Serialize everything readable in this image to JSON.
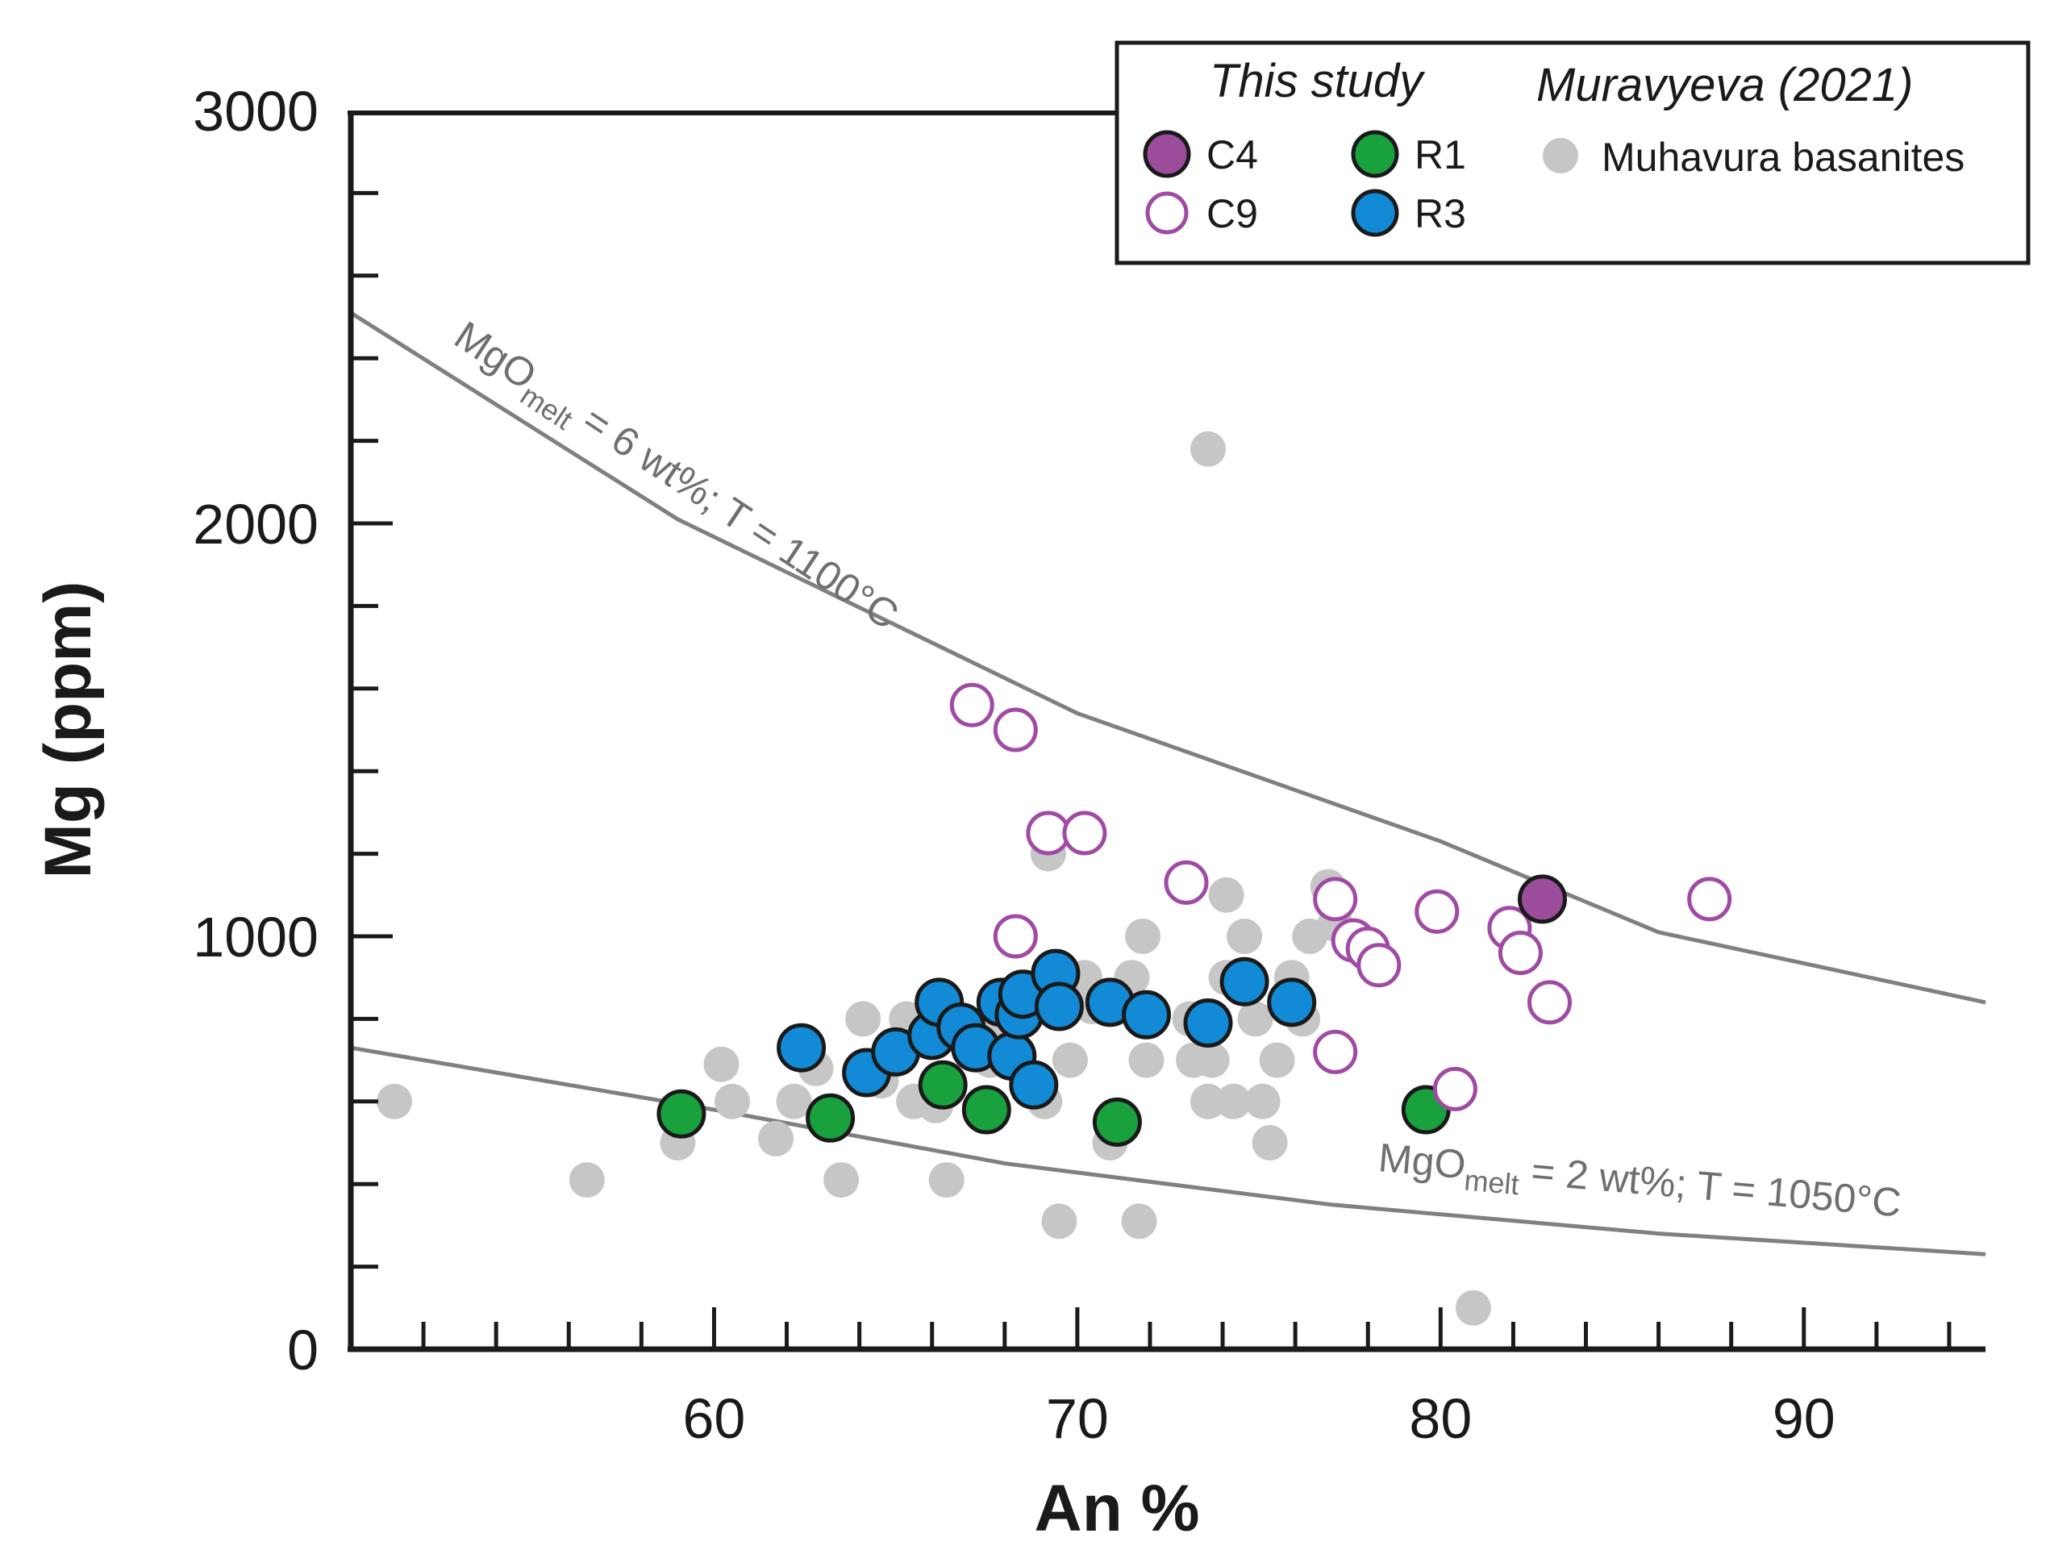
{
  "chart_data": {
    "type": "scatter",
    "xlabel": "An %",
    "ylabel": "Mg (ppm)",
    "xlim": [
      50,
      95
    ],
    "ylim": [
      0,
      3000
    ],
    "x_ticks": [
      60,
      70,
      80,
      90
    ],
    "y_ticks": [
      0,
      1000,
      2000,
      3000
    ],
    "grid": false,
    "legend_position": "top-right",
    "legend": {
      "group_this_study": "This study",
      "group_muravyeva": "Muravyeva (2021)",
      "entries": [
        "C4",
        "C9",
        "R1",
        "R3",
        "Muhavura basanites"
      ]
    },
    "colors": {
      "C4": "#9b4c9b",
      "C9": "#a04aa4",
      "R1": "#19a13e",
      "R3": "#128ad5",
      "Muhavura basanites": "#c6c6c6",
      "curves": "#808080"
    },
    "curves": [
      {
        "name": "MgO_melt = 6 wt%; T = 1100°C",
        "label_main": "MgO",
        "label_sub": "melt",
        "label_rest": " = 6 wt%; T = 1100°C",
        "x": [
          50,
          59,
          70,
          80,
          86,
          95
        ],
        "y": [
          2510,
          2010,
          1540,
          1230,
          1010,
          840
        ]
      },
      {
        "name": "MgO_melt = 2 wt%; T = 1050°C",
        "label_main": "MgO",
        "label_sub": "melt",
        "label_rest": " = 2 wt%; T = 1050°C",
        "x": [
          50,
          60,
          68,
          77,
          86,
          95
        ],
        "y": [
          730,
          580,
          450,
          350,
          280,
          230
        ]
      }
    ],
    "series": [
      {
        "name": "Muhavura basanites",
        "style": "filled",
        "points": [
          [
            51.2,
            600
          ],
          [
            56.5,
            410
          ],
          [
            59,
            500
          ],
          [
            60.2,
            690
          ],
          [
            60.5,
            600
          ],
          [
            61.7,
            510
          ],
          [
            62.2,
            600
          ],
          [
            62.8,
            680
          ],
          [
            63.5,
            410
          ],
          [
            64.1,
            800
          ],
          [
            64.6,
            650
          ],
          [
            65.3,
            800
          ],
          [
            65.5,
            600
          ],
          [
            66.1,
            590
          ],
          [
            66.4,
            410
          ],
          [
            67.6,
            700
          ],
          [
            67.9,
            800
          ],
          [
            68.5,
            850
          ],
          [
            69.1,
            600
          ],
          [
            69.5,
            310
          ],
          [
            69.8,
            700
          ],
          [
            70.2,
            900
          ],
          [
            70.4,
            830
          ],
          [
            70.9,
            500
          ],
          [
            71.5,
            900
          ],
          [
            71.8,
            1000
          ],
          [
            71.9,
            700
          ],
          [
            71.7,
            310
          ],
          [
            73.1,
            800
          ],
          [
            73.2,
            700
          ],
          [
            73.6,
            600
          ],
          [
            73.7,
            700
          ],
          [
            74.1,
            900
          ],
          [
            74.3,
            600
          ],
          [
            74.1,
            1100
          ],
          [
            74.6,
            1000
          ],
          [
            74.9,
            800
          ],
          [
            75.1,
            600
          ],
          [
            75.3,
            500
          ],
          [
            75.5,
            700
          ],
          [
            75.9,
            900
          ],
          [
            76.2,
            800
          ],
          [
            76.4,
            1000
          ],
          [
            76.9,
            1120
          ],
          [
            77.1,
            1030
          ],
          [
            73.6,
            2180
          ],
          [
            80.9,
            100
          ],
          [
            69.2,
            1200
          ]
        ]
      },
      {
        "name": "R1",
        "style": "filled",
        "points": [
          [
            59.1,
            570
          ],
          [
            63.2,
            560
          ],
          [
            66.3,
            640
          ],
          [
            67.5,
            580
          ],
          [
            71.1,
            550
          ],
          [
            79.6,
            580
          ]
        ]
      },
      {
        "name": "R3",
        "style": "filled",
        "points": [
          [
            62.4,
            730
          ],
          [
            64.2,
            670
          ],
          [
            65,
            720
          ],
          [
            66,
            760
          ],
          [
            66.2,
            840
          ],
          [
            66.8,
            780
          ],
          [
            67.2,
            730
          ],
          [
            67.9,
            840
          ],
          [
            68.2,
            710
          ],
          [
            68.4,
            810
          ],
          [
            68.5,
            860
          ],
          [
            68.8,
            640
          ],
          [
            69.4,
            910
          ],
          [
            69.5,
            830
          ],
          [
            70.9,
            840
          ],
          [
            71.9,
            810
          ],
          [
            73.6,
            790
          ],
          [
            74.6,
            890
          ],
          [
            75.9,
            840
          ]
        ]
      },
      {
        "name": "C9",
        "style": "open",
        "points": [
          [
            67.1,
            1560
          ],
          [
            68.3,
            1500
          ],
          [
            69.2,
            1250
          ],
          [
            70.2,
            1250
          ],
          [
            68.3,
            1000
          ],
          [
            73,
            1130
          ],
          [
            77.1,
            1090
          ],
          [
            77.6,
            990
          ],
          [
            78,
            970
          ],
          [
            78.3,
            930
          ],
          [
            79.9,
            1060
          ],
          [
            77.1,
            720
          ],
          [
            80.4,
            630
          ],
          [
            81.9,
            1020
          ],
          [
            82.2,
            960
          ],
          [
            83,
            840
          ],
          [
            87.4,
            1090
          ]
        ]
      },
      {
        "name": "C4",
        "style": "filled",
        "points": [
          [
            82.8,
            1090
          ]
        ]
      }
    ]
  }
}
